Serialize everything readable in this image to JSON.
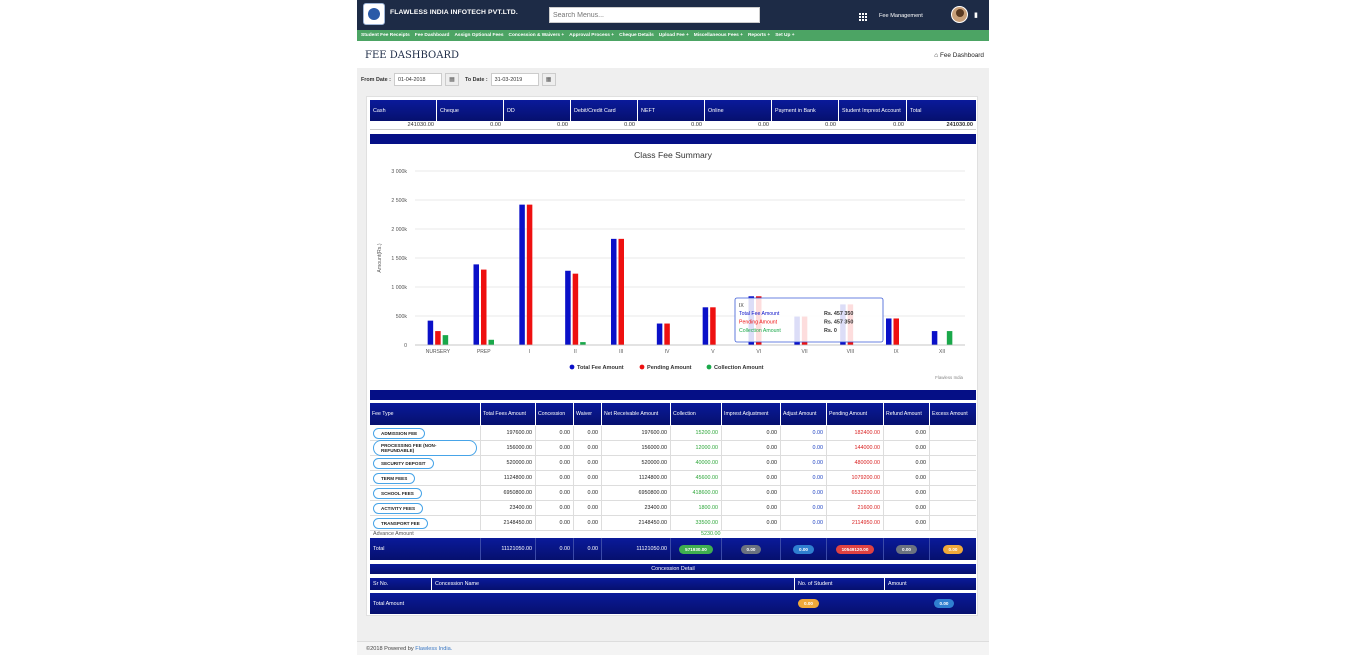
{
  "header": {
    "brand": "FLAWLESS INDIA INFOTECH PVT.LTD.",
    "search_placeholder": "Search Menus...",
    "module": "Fee Management"
  },
  "menu": [
    "Student Fee Receipts",
    "Fee Dashboard",
    "Assign Optional Fees",
    "Concession & Waivers +",
    "Approval Process +",
    "Cheque Details",
    "Upload Fee +",
    "Miscellaneous Fees +",
    "Reports +",
    "Set Up +"
  ],
  "page": {
    "title": "FEE DASHBOARD",
    "breadcrumb": "Fee Dashboard"
  },
  "filters": {
    "from_label": "From Date :",
    "from_value": "01-04-2018",
    "to_label": "To Date :",
    "to_value": "31-03-2019"
  },
  "payment_modes": {
    "headers": [
      "Cash",
      "Cheque",
      "DD",
      "Debit/Credit Card",
      "NEFT",
      "Online",
      "Payment in Bank",
      "Student Imprest Account",
      "Total"
    ],
    "values": [
      "241030.00",
      "0.00",
      "0.00",
      "0.00",
      "0.00",
      "0.00",
      "0.00",
      "0.00",
      "241030.00"
    ]
  },
  "chart_data": {
    "type": "bar",
    "title": "Class Fee Summary",
    "ylabel": "Amount(Rs.)",
    "xlabel": "",
    "ylim": [
      0,
      3000000
    ],
    "yticks": [
      "0",
      "500k",
      "1 000k",
      "1 500k",
      "2 000k",
      "2 500k",
      "3 000k"
    ],
    "grid": true,
    "legend_position": "bottom",
    "credits": "Flawless India",
    "categories": [
      "NURSERY",
      "PREP",
      "I",
      "II",
      "III",
      "IV",
      "V",
      "VI",
      "VII",
      "VIII",
      "IX",
      "XII"
    ],
    "series": [
      {
        "name": "Total Fee Amount",
        "color": "#0a10c8",
        "values": [
          420000,
          1390000,
          2420000,
          1280000,
          1830000,
          370000,
          650000,
          840000,
          490000,
          700000,
          457350,
          240000
        ]
      },
      {
        "name": "Pending Amount",
        "color": "#ee1010",
        "values": [
          240000,
          1300000,
          2420000,
          1230000,
          1830000,
          370000,
          650000,
          840000,
          490000,
          700000,
          457350,
          0
        ]
      },
      {
        "name": "Collection Amount",
        "color": "#1aa84a",
        "values": [
          170000,
          90000,
          0,
          50000,
          0,
          0,
          0,
          0,
          0,
          0,
          0,
          240000
        ]
      }
    ],
    "tooltip": {
      "category": "IX",
      "rows": [
        {
          "label": "Total Fee Amount",
          "value": "Rs. 457 350",
          "color": "#0a10c8"
        },
        {
          "label": "Pending Amount",
          "value": "Rs. 457 350",
          "color": "#ee1010"
        },
        {
          "label": "Collection Amount",
          "value": "Rs. 0",
          "color": "#1aa84a"
        }
      ]
    }
  },
  "fee_table": {
    "headers": [
      "Fee Type",
      "Total Fees Amount",
      "Concession",
      "Waiver",
      "Net Receivable Amount",
      "Collection",
      "Imprest Adjustment",
      "Adjust Amount",
      "Pending Amount",
      "Refund Amount",
      "Excess Amount"
    ],
    "rows": [
      [
        "ADMISSION FEE",
        "197600.00",
        "0.00",
        "0.00",
        "197600.00",
        "15200.00",
        "0.00",
        "0.00",
        "182400.00",
        "0.00",
        ""
      ],
      [
        "PROCESSING FEE (NON-REFUNDABLE)",
        "156000.00",
        "0.00",
        "0.00",
        "156000.00",
        "12000.00",
        "0.00",
        "0.00",
        "144000.00",
        "0.00",
        ""
      ],
      [
        "SECURITY DEPOSIT",
        "520000.00",
        "0.00",
        "0.00",
        "520000.00",
        "40000.00",
        "0.00",
        "0.00",
        "480000.00",
        "0.00",
        ""
      ],
      [
        "TERM FEES",
        "1124800.00",
        "0.00",
        "0.00",
        "1124800.00",
        "45600.00",
        "0.00",
        "0.00",
        "1079200.00",
        "0.00",
        ""
      ],
      [
        "SCHOOL FEES",
        "6950800.00",
        "0.00",
        "0.00",
        "6950800.00",
        "418600.00",
        "0.00",
        "0.00",
        "6532200.00",
        "0.00",
        ""
      ],
      [
        "ACTIVITY FEES",
        "23400.00",
        "0.00",
        "0.00",
        "23400.00",
        "1800.00",
        "0.00",
        "0.00",
        "21600.00",
        "0.00",
        ""
      ],
      [
        "TRANSPORT FEE",
        "2148450.00",
        "0.00",
        "0.00",
        "2148450.00",
        "33500.00",
        "0.00",
        "0.00",
        "2114950.00",
        "0.00",
        ""
      ]
    ],
    "advance_label": "Advance Amount",
    "advance_value": "5230.00",
    "total": {
      "label": "Total",
      "total_fees": "11121050.00",
      "concession": "0.00",
      "waiver": "0.00",
      "net": "11121050.00",
      "collection": "571930.00",
      "imprest": "0.00",
      "adjust": "0.00",
      "pending": "10549120.00",
      "refund": "0.00",
      "excess": "0.00"
    }
  },
  "concession": {
    "title": "Concession Detail",
    "headers": [
      "Sr No.",
      "Concession Name",
      "No. of Student",
      "Amount"
    ],
    "total_label": "Total Amount",
    "students": "0.00",
    "amount": "0.00"
  },
  "footer": {
    "text": "©2018 Powered by",
    "link": "Flawless India."
  },
  "colors": {
    "navy": "#06106e",
    "topbar": "#1d2b46",
    "menubar": "#4ca464"
  }
}
